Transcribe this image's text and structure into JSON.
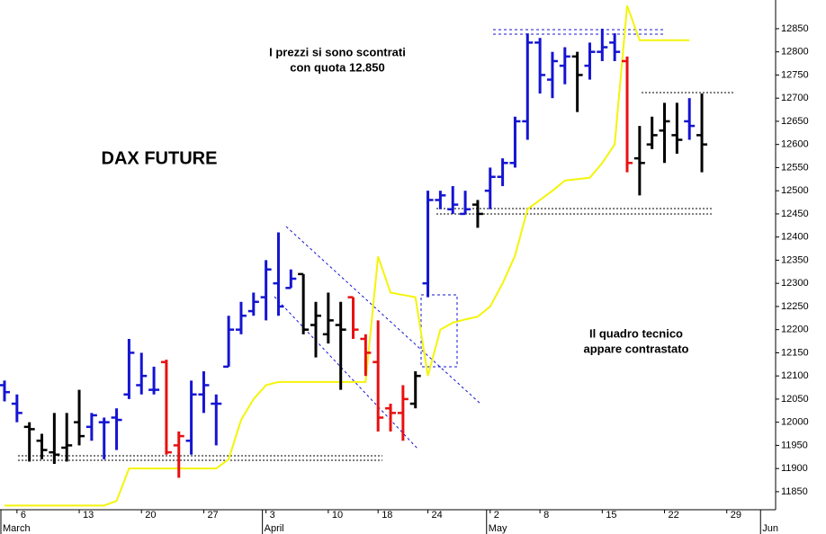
{
  "chart_data": {
    "type": "ohlc",
    "title": "DAX FUTURE",
    "annotations": [
      [
        "I prezzi si sono scontrati",
        "con quota 12.850"
      ],
      [
        "Il quadro tecnico",
        "appare contrastato"
      ]
    ],
    "categories": [
      null,
      "6",
      null,
      null,
      null,
      null,
      "13",
      null,
      null,
      null,
      null,
      "20",
      null,
      null,
      null,
      null,
      "27",
      null,
      null,
      null,
      null,
      "3",
      null,
      null,
      null,
      null,
      "10",
      null,
      null,
      null,
      "18",
      null,
      null,
      null,
      "24",
      null,
      null,
      null,
      null,
      "2",
      null,
      null,
      null,
      "8",
      null,
      null,
      null,
      null,
      "15",
      null,
      null,
      null,
      null,
      "22",
      null,
      null,
      null,
      null,
      "29",
      null,
      null,
      null
    ],
    "x_groups": [
      {
        "label": "March",
        "start": 0
      },
      {
        "label": "April",
        "start": 21
      },
      {
        "label": "May",
        "start": 39
      },
      {
        "label": "Jun",
        "start": 61
      }
    ],
    "open": [
      12080,
      12040,
      11990,
      11960,
      11935,
      11945,
      12000,
      11990,
      12000,
      12010,
      12060,
      12080,
      12070,
      12130,
      11950,
      11960,
      12060,
      12040,
      12120,
      12200,
      12240,
      12270,
      12300,
      12290,
      12320,
      12210,
      12190,
      12210,
      12270,
      12180,
      12130,
      12030,
      12020,
      12040,
      12300,
      12480,
      12460,
      12450,
      12470,
      12500,
      12530,
      12560,
      12650,
      12820,
      12740,
      12770,
      12790,
      12770,
      12800,
      12820,
      12780,
      12570,
      12600,
      12630,
      12620,
      12650,
      12620,
      null,
      null,
      null,
      null,
      null
    ],
    "high": [
      12090,
      12060,
      12000,
      11975,
      12020,
      12020,
      12070,
      12020,
      12010,
      12030,
      12180,
      12150,
      12120,
      12135,
      11980,
      12090,
      12110,
      12060,
      12230,
      12260,
      12280,
      12350,
      12410,
      12330,
      12320,
      12260,
      12280,
      12260,
      12270,
      12190,
      12220,
      12040,
      12080,
      12110,
      12500,
      12500,
      12510,
      12500,
      12480,
      12550,
      12570,
      12660,
      12840,
      12830,
      12800,
      12810,
      12800,
      12820,
      12850,
      12840,
      12790,
      12640,
      12660,
      12690,
      12690,
      12700,
      12710,
      null,
      null,
      null,
      null,
      null
    ],
    "low": [
      12045,
      12000,
      11915,
      11920,
      11910,
      11915,
      11950,
      11960,
      11920,
      11940,
      12050,
      12060,
      12060,
      11930,
      11880,
      11930,
      12020,
      11950,
      12120,
      12190,
      12230,
      12220,
      12230,
      12290,
      12190,
      12140,
      12170,
      12070,
      12180,
      12100,
      11980,
      11980,
      11960,
      12030,
      12270,
      12460,
      12450,
      12450,
      12420,
      12460,
      12510,
      12550,
      12610,
      12710,
      12700,
      12730,
      12670,
      12740,
      12780,
      12780,
      12540,
      12490,
      12590,
      12560,
      12580,
      12610,
      12540,
      null,
      null,
      null,
      null,
      null
    ],
    "close": [
      12065,
      12020,
      11985,
      11940,
      11930,
      11950,
      11970,
      12015,
      12000,
      12005,
      12150,
      12100,
      12070,
      11935,
      11970,
      12060,
      12080,
      12040,
      12200,
      12230,
      12260,
      12330,
      12250,
      12310,
      12200,
      12230,
      12220,
      12200,
      12200,
      12150,
      12010,
      12020,
      12050,
      12100,
      12480,
      12490,
      12470,
      12460,
      12450,
      12530,
      12560,
      12650,
      12820,
      12750,
      12780,
      12790,
      12750,
      12800,
      12810,
      12800,
      12560,
      12560,
      12620,
      12650,
      12610,
      12640,
      12600,
      null,
      null,
      null,
      null,
      null
    ],
    "colors": [
      "#1414d2",
      "#1414d2",
      "#000000",
      "#000000",
      "#000000",
      "#000000",
      "#000000",
      "#1414d2",
      "#1414d2",
      "#1414d2",
      "#1414d2",
      "#1414d2",
      "#1414d2",
      "#e81010",
      "#e81010",
      "#1414d2",
      "#1414d2",
      "#1414d2",
      "#1414d2",
      "#1414d2",
      "#1414d2",
      "#1414d2",
      "#1414d2",
      "#1414d2",
      "#000000",
      "#000000",
      "#000000",
      "#000000",
      "#e81010",
      "#e81010",
      "#e81010",
      "#e81010",
      "#e81010",
      "#000000",
      "#1414d2",
      "#1414d2",
      "#1414d2",
      "#1414d2",
      "#000000",
      "#1414d2",
      "#1414d2",
      "#1414d2",
      "#1414d2",
      "#1414d2",
      "#1414d2",
      "#1414d2",
      "#000000",
      "#1414d2",
      "#1414d2",
      "#1414d2",
      "#e81010",
      "#000000",
      "#000000",
      "#000000",
      "#000000",
      "#1414d2",
      "#000000",
      null,
      null,
      null,
      null,
      null
    ],
    "line": {
      "color": "#f4f40a",
      "values": [
        11820,
        11820,
        11820,
        11820,
        11820,
        11820,
        11820,
        11820,
        11820,
        11830,
        11900,
        11900,
        11900,
        11900,
        11900,
        11900,
        11900,
        11900,
        11920,
        12005,
        12050,
        12080,
        12087,
        12087,
        12087,
        12087,
        12087,
        12087,
        12087,
        12087,
        12358,
        12280,
        12275,
        12270,
        12100,
        12200,
        12215,
        12222,
        12228,
        12250,
        12300,
        12360,
        12460,
        12480,
        12500,
        12522,
        12525,
        12528,
        12560,
        12600,
        12900,
        12825,
        12825,
        12825,
        12825,
        12825,
        null,
        null,
        null,
        null,
        null,
        null
      ]
    },
    "ylim": [
      11811,
      12912
    ],
    "yticks": [
      11850,
      11900,
      11950,
      12000,
      12050,
      12100,
      12150,
      12200,
      12250,
      12300,
      12350,
      12400,
      12450,
      12500,
      12550,
      12600,
      12650,
      12700,
      12750,
      12800,
      12850
    ]
  }
}
